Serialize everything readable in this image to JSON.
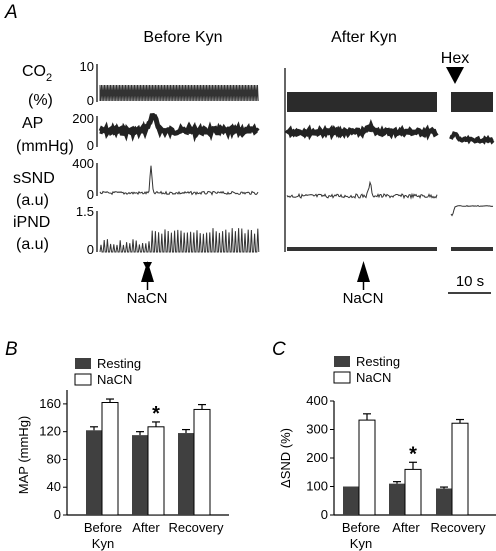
{
  "chart_data": [
    {
      "panel": "A",
      "type": "line",
      "titles": [
        "Before Kyn",
        "After Kyn"
      ],
      "traces": [
        {
          "name": "CO2 (%)",
          "label_line1": "CO",
          "label_sub": "2",
          "label_line2": "(%)",
          "ticks": [
            "10",
            "0"
          ],
          "ylim": [
            0,
            10
          ]
        },
        {
          "name": "AP (mmHg)",
          "label_line1": "AP",
          "label_line2": "(mmHg)",
          "ticks": [
            "200",
            "0"
          ],
          "ylim": [
            0,
            200
          ]
        },
        {
          "name": "sSND (a.u)",
          "label_line1": "sSND",
          "label_line2": "(a.u)",
          "ticks": [
            "400",
            "0"
          ],
          "ylim": [
            0,
            400
          ]
        },
        {
          "name": "iPND (a.u)",
          "label_line1": "iPND",
          "label_line2": "(a.u)",
          "ticks": [
            "1.5",
            "0"
          ],
          "ylim": [
            0,
            1.5
          ]
        }
      ],
      "stimulus": "NaCN",
      "hex_label": "Hex",
      "scale_bar": "10 s"
    },
    {
      "panel": "B",
      "type": "bar",
      "ylabel": "MAP (mmHg)",
      "ylim": [
        0,
        180
      ],
      "yticks": [
        0,
        40,
        80,
        120,
        160
      ],
      "category_labels": [
        "Before",
        "After",
        "Recovery"
      ],
      "sub_label": "Kyn",
      "series": [
        {
          "name": "Resting",
          "values": [
            122,
            115,
            118
          ],
          "errors": [
            5,
            5,
            5
          ]
        },
        {
          "name": "NaCN",
          "values": [
            162,
            127,
            152
          ],
          "errors": [
            5,
            7,
            7
          ]
        }
      ],
      "significance": {
        "series": 1,
        "index": 1,
        "mark": "*"
      },
      "legend": "top-left"
    },
    {
      "panel": "C",
      "type": "bar",
      "ylabel": "ΔSND (%)",
      "ylim": [
        0,
        400
      ],
      "yticks": [
        0,
        100,
        200,
        300,
        400
      ],
      "category_labels": [
        "Before",
        "After",
        "Recovery"
      ],
      "sub_label": "Kyn",
      "series": [
        {
          "name": "Resting",
          "values": [
            100,
            110,
            93
          ],
          "errors": [
            0,
            7,
            5
          ]
        },
        {
          "name": "NaCN",
          "values": [
            333,
            160,
            322
          ],
          "errors": [
            22,
            25,
            13
          ]
        }
      ],
      "significance": {
        "series": 1,
        "index": 1,
        "mark": "*"
      },
      "legend": "top-left"
    }
  ]
}
